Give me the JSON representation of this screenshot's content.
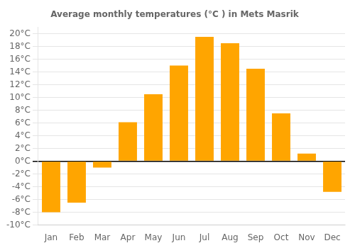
{
  "chart_data": {
    "type": "bar",
    "title": "Average monthly temperatures (°C ) in Mets Masrik",
    "categories": [
      "Jan",
      "Feb",
      "Mar",
      "Apr",
      "May",
      "Jun",
      "Jul",
      "Aug",
      "Sep",
      "Oct",
      "Nov",
      "Dec"
    ],
    "values": [
      -8.0,
      -6.5,
      -1.0,
      6.1,
      10.5,
      15.0,
      19.5,
      18.5,
      14.5,
      7.5,
      1.2,
      -4.8
    ],
    "color": "#FFA500",
    "ylim": [
      -10,
      21
    ],
    "yticks": [
      {
        "value": -10,
        "label": "-10°C"
      },
      {
        "value": -8,
        "label": "-8°C"
      },
      {
        "value": -6,
        "label": "-6°C"
      },
      {
        "value": -4,
        "label": "-4°C"
      },
      {
        "value": -2,
        "label": "-2°C"
      },
      {
        "value": 0,
        "label": "0°C"
      },
      {
        "value": 2,
        "label": "2°C"
      },
      {
        "value": 4,
        "label": "4°C"
      },
      {
        "value": 6,
        "label": "6°C"
      },
      {
        "value": 8,
        "label": "8°C"
      },
      {
        "value": 10,
        "label": "10°C"
      },
      {
        "value": 12,
        "label": "12°C"
      },
      {
        "value": 14,
        "label": "14°C"
      },
      {
        "value": 16,
        "label": "16°C"
      },
      {
        "value": 18,
        "label": "18°C"
      },
      {
        "value": 20,
        "label": "20°C"
      }
    ],
    "grid": true
  }
}
